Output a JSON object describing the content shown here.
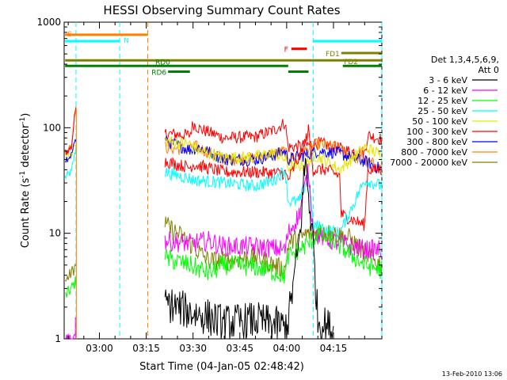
{
  "chart_data": {
    "type": "line",
    "title": "HESSI Observing Summary Count Rates",
    "xlabel": "Start Time (04-Jan-05 02:48:42)",
    "ylabel_main": "Count Rate (s",
    "ylabel_sup": "-1",
    "ylabel_mid": " detector",
    "ylabel_end": ")",
    "footer": "13-Feb-2010 13:06",
    "x_range_min": [
      48.7,
      150.5
    ],
    "y_log_range": [
      1,
      1000
    ],
    "x_ticks": [
      {
        "label": "03:00",
        "min": 60
      },
      {
        "label": "03:15",
        "min": 75
      },
      {
        "label": "03:30",
        "min": 90
      },
      {
        "label": "03:45",
        "min": 105
      },
      {
        "label": "04:00",
        "min": 120
      },
      {
        "label": "04:15",
        "min": 135
      }
    ],
    "y_ticks": [
      {
        "label": "1",
        "v": 1
      },
      {
        "label": "10",
        "v": 10
      },
      {
        "label": "100",
        "v": 100
      },
      {
        "label": "1000",
        "v": 1000
      }
    ],
    "legend": {
      "header1": "Det 1,3,4,5,6,9,",
      "header2": "Att 0",
      "entries": [
        {
          "label": "3 - 6 keV",
          "color": "#000000"
        },
        {
          "label": "6 - 12 keV",
          "color": "#ff00ff"
        },
        {
          "label": "12 - 25 keV",
          "color": "#00ff00"
        },
        {
          "label": "25 - 50 keV",
          "color": "#00ffff"
        },
        {
          "label": "50 - 100 keV",
          "color": "#e6e600"
        },
        {
          "label": "100 - 300 keV",
          "color": "#ff0000"
        },
        {
          "label": "300 - 800 keV",
          "color": "#0000ff"
        },
        {
          "label": "800 - 7000 keV",
          "color": "#ff8000"
        },
        {
          "label": "7000 - 20000 keV",
          "color": "#808000"
        }
      ]
    },
    "flag_bars": [
      {
        "label": "S",
        "color": "#ff8000",
        "level": 760,
        "start": 49,
        "end": 75.5
      },
      {
        "label": "N",
        "color": "#00ffff",
        "level": 660,
        "start": 49,
        "end": 66.5
      },
      {
        "label": "N",
        "color": "#00ffff",
        "level": 660,
        "start": 128.5,
        "end": 150.5
      },
      {
        "label": "F",
        "color": "#ff0000",
        "level": 560,
        "start": 121.5,
        "end": 126.5
      },
      {
        "label": "FD1",
        "color": "#808000",
        "level": 510,
        "start": 137.5,
        "end": 150.5
      },
      {
        "label": "FD2",
        "color": "#808000",
        "level": 435,
        "start": 49,
        "end": 150.5
      },
      {
        "label": "RD0",
        "color": "#008000",
        "level": 385,
        "start": 49,
        "end": 120.5
      },
      {
        "label": "RD0",
        "color": "#008000",
        "level": 385,
        "start": 138,
        "end": 150.5
      },
      {
        "label": "RD6",
        "color": "#008000",
        "level": 340,
        "start": 82,
        "end": 89
      },
      {
        "label": "RD6",
        "color": "#008000",
        "level": 340,
        "start": 120.5,
        "end": 127
      }
    ],
    "dashed_lines": [
      {
        "min": 52.5,
        "color": "#00ffff"
      },
      {
        "min": 66.5,
        "color": "#00ffff"
      },
      {
        "min": 75.5,
        "color": "#ff8000"
      },
      {
        "min": 128.5,
        "color": "#00ffff"
      },
      {
        "min": 150.5,
        "color": "#00ffff"
      }
    ],
    "segments": [
      {
        "start": 49,
        "end": 53,
        "noise": 0.08,
        "series": {
          "cyan": [
            [
              49,
              34
            ],
            [
              51,
              38
            ],
            [
              52.5,
              65
            ]
          ],
          "yellow": [
            [
              49,
              52
            ],
            [
              51,
              55
            ],
            [
              52.5,
              70
            ]
          ],
          "orange": [
            [
              49,
              58
            ],
            [
              51,
              65
            ],
            [
              52.5,
              160
            ]
          ],
          "red": [
            [
              49,
              58
            ],
            [
              51,
              65
            ],
            [
              52.5,
              170
            ]
          ],
          "blue": [
            [
              49,
              50
            ],
            [
              51,
              55
            ],
            [
              52.5,
              80
            ]
          ],
          "olive": [
            [
              49,
              3.5
            ],
            [
              51,
              4.2
            ],
            [
              52.5,
              5
            ]
          ],
          "green": [
            [
              49,
              2.5
            ],
            [
              51,
              3
            ],
            [
              52.5,
              3.5
            ]
          ],
          "magenta": [
            [
              49,
              1
            ],
            [
              52.5,
              1
            ]
          ]
        }
      },
      {
        "start": 81,
        "end": 151,
        "noise": 0.12,
        "series": {
          "red": [
            [
              81,
              88
            ],
            [
              89,
              85
            ],
            [
              90,
              110
            ],
            [
              92,
              98
            ],
            [
              100,
              80
            ],
            [
              110,
              82
            ],
            [
              116,
              95
            ],
            [
              119.5,
              112
            ],
            [
              120.5,
              65
            ],
            [
              126,
              68
            ],
            [
              130,
              72
            ],
            [
              136,
              65
            ],
            [
              140,
              60
            ],
            [
              145,
              58
            ],
            [
              146,
              85
            ],
            [
              150.5,
              78
            ]
          ],
          "orange": [
            [
              81,
              65
            ],
            [
              89,
              62
            ],
            [
              90,
              68
            ],
            [
              100,
              50
            ],
            [
              110,
              52
            ],
            [
              119.5,
              60
            ],
            [
              120.5,
              50
            ],
            [
              126,
              60
            ],
            [
              130,
              70
            ],
            [
              136,
              65
            ],
            [
              140,
              55
            ],
            [
              150.5,
              42
            ]
          ],
          "blue": [
            [
              81,
              75
            ],
            [
              89,
              62
            ],
            [
              92,
              65
            ],
            [
              100,
              50
            ],
            [
              110,
              50
            ],
            [
              116,
              55
            ],
            [
              119.5,
              60
            ],
            [
              120.5,
              50
            ],
            [
              126,
              55
            ],
            [
              130,
              60
            ],
            [
              136,
              58
            ],
            [
              145,
              48
            ],
            [
              150.5,
              40
            ]
          ],
          "yellow": [
            [
              81,
              75
            ],
            [
              89,
              70
            ],
            [
              92,
              60
            ],
            [
              100,
              52
            ],
            [
              110,
              53
            ],
            [
              116,
              58
            ],
            [
              119.5,
              50
            ],
            [
              120.5,
              42
            ],
            [
              126,
              45
            ],
            [
              129,
              55
            ],
            [
              133,
              48
            ],
            [
              137,
              40
            ],
            [
              145,
              65
            ],
            [
              150.5,
              55
            ]
          ],
          "red2": [
            [
              81,
              48
            ],
            [
              89,
              42
            ],
            [
              90,
              45
            ],
            [
              100,
              38
            ],
            [
              110,
              38
            ],
            [
              119.5,
              37
            ],
            [
              120.5,
              32
            ],
            [
              125,
              60
            ],
            [
              127,
              95
            ],
            [
              128.5,
              40
            ],
            [
              133,
              40
            ],
            [
              137,
              35
            ],
            [
              137.5,
              15
            ],
            [
              145,
              12
            ],
            [
              146,
              40
            ],
            [
              150.5,
              40
            ]
          ],
          "cyan": [
            [
              81,
              38
            ],
            [
              89,
              33
            ],
            [
              90,
              32
            ],
            [
              100,
              30
            ],
            [
              110,
              28
            ],
            [
              116,
              32
            ],
            [
              119.5,
              40
            ],
            [
              120.5,
              20
            ],
            [
              124,
              20
            ],
            [
              127,
              35
            ],
            [
              128.5,
              12
            ],
            [
              137,
              10
            ],
            [
              145,
              32
            ],
            [
              150.5,
              28
            ]
          ],
          "olive": [
            [
              81,
              12
            ],
            [
              85,
              10
            ],
            [
              89,
              8
            ],
            [
              95,
              5.5
            ],
            [
              100,
              5.5
            ],
            [
              110,
              6
            ],
            [
              119.5,
              4.5
            ],
            [
              120.5,
              8
            ],
            [
              127,
              10
            ],
            [
              135,
              10
            ],
            [
              140,
              9
            ],
            [
              145,
              6.5
            ],
            [
              150.5,
              5
            ]
          ],
          "magenta": [
            [
              81,
              8.5
            ],
            [
              89,
              8
            ],
            [
              95,
              8.5
            ],
            [
              100,
              7.5
            ],
            [
              110,
              7.5
            ],
            [
              119.5,
              7
            ],
            [
              120.5,
              10
            ],
            [
              124,
              15
            ],
            [
              127,
              40
            ],
            [
              128.5,
              10
            ],
            [
              137,
              8
            ],
            [
              145,
              7
            ],
            [
              150.5,
              7
            ]
          ],
          "green": [
            [
              81,
              5.8
            ],
            [
              89,
              5
            ],
            [
              95,
              4.2
            ],
            [
              100,
              5
            ],
            [
              110,
              4.8
            ],
            [
              119.5,
              4
            ],
            [
              120.5,
              6
            ],
            [
              127,
              8
            ],
            [
              130,
              10
            ],
            [
              135,
              8.5
            ],
            [
              140,
              6.5
            ],
            [
              145,
              5
            ],
            [
              150.5,
              4.5
            ]
          ],
          "black": [
            [
              81,
              2.2
            ],
            [
              89,
              1.8
            ],
            [
              95,
              1.6
            ],
            [
              100,
              1.4
            ],
            [
              110,
              1.5
            ],
            [
              119.5,
              1.3
            ],
            [
              120.5,
              1.5
            ],
            [
              124,
              8
            ],
            [
              126,
              50
            ],
            [
              128.5,
              8
            ],
            [
              130,
              1.5
            ],
            [
              135,
              1.2
            ]
          ]
        }
      }
    ],
    "series_colors": {
      "black": "#000000",
      "magenta": "#ff00ff",
      "green": "#00ff00",
      "cyan": "#00ffff",
      "yellow": "#e6e600",
      "red": "#ff0000",
      "red2": "#ff0000",
      "blue": "#0000ff",
      "orange": "#ff8000",
      "olive": "#808000"
    }
  }
}
